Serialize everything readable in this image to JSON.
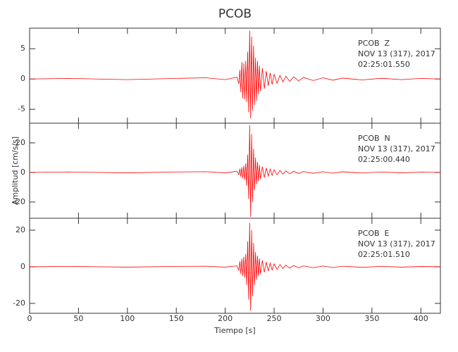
{
  "chart_data": [
    {
      "type": "line",
      "title": "PCOB",
      "color": "#ff0000",
      "annotation": [
        "PCOB  Z",
        "NOV 13 (317), 2017",
        "02:25:01.550"
      ],
      "xlim": [
        0,
        420
      ],
      "xticks": [
        0,
        50,
        100,
        150,
        200,
        250,
        300,
        350,
        400
      ],
      "ylim": [
        -7.3,
        8.4
      ],
      "yticks": [
        -5,
        0,
        5
      ],
      "x": [
        0,
        40,
        100,
        150,
        180,
        200,
        212,
        214,
        215,
        216,
        217,
        218,
        219,
        220,
        221,
        222,
        223,
        224,
        225,
        226,
        227,
        228,
        229,
        230,
        231,
        232,
        233,
        234,
        235,
        236,
        238,
        240,
        242,
        244,
        246,
        248,
        250,
        253,
        256,
        259,
        262,
        266,
        270,
        275,
        280,
        290,
        300,
        310,
        320,
        340,
        360,
        380,
        400,
        420
      ],
      "values": [
        0,
        0.1,
        -0.1,
        0.1,
        0.2,
        -0.1,
        0.3,
        -0.8,
        1.5,
        -2.2,
        2.8,
        -3.2,
        2.6,
        -3.4,
        3.0,
        -3.8,
        4.5,
        -5.5,
        8,
        -6.5,
        7,
        -5.2,
        5.5,
        -4.3,
        3.5,
        -3.6,
        3,
        -2.5,
        2.2,
        -2,
        1.8,
        -1.6,
        1.3,
        -1.1,
        1,
        -0.9,
        0.8,
        -0.7,
        0.6,
        -0.5,
        0.45,
        -0.4,
        0.35,
        -0.3,
        0.25,
        -0.25,
        0.2,
        -0.2,
        0.15,
        -0.15,
        0.12,
        -0.1,
        0.1,
        0
      ]
    },
    {
      "type": "line",
      "ylabel": "Amplitud [cm/s/s]",
      "color": "#ff0000",
      "annotation": [
        "PCOB  N",
        "NOV 13 (317), 2017",
        "02:25:00.440"
      ],
      "xlim": [
        0,
        420
      ],
      "xticks": [
        0,
        50,
        100,
        150,
        200,
        250,
        300,
        350,
        400
      ],
      "ylim": [
        -31,
        33.3
      ],
      "yticks": [
        -20,
        0,
        20
      ],
      "x": [
        0,
        40,
        100,
        150,
        180,
        200,
        212,
        214,
        215,
        216,
        217,
        218,
        219,
        220,
        221,
        222,
        223,
        224,
        225,
        226,
        227,
        228,
        229,
        230,
        231,
        232,
        233,
        234,
        235,
        236,
        238,
        240,
        242,
        244,
        246,
        248,
        250,
        253,
        256,
        259,
        262,
        266,
        270,
        275,
        280,
        290,
        300,
        310,
        320,
        340,
        360,
        380,
        400,
        420
      ],
      "values": [
        0,
        0.3,
        -0.3,
        0.3,
        0.5,
        -0.3,
        0.8,
        -1.5,
        2.5,
        -3,
        3.5,
        -4,
        4.5,
        -5,
        6,
        -9,
        12,
        -18,
        32,
        -30,
        26,
        -20,
        16,
        -12,
        10,
        -8,
        7,
        -6,
        5,
        -4.5,
        4,
        -3.5,
        3,
        -2.5,
        2.2,
        -2,
        1.8,
        -1.5,
        1.3,
        -1.1,
        1,
        -0.9,
        0.8,
        -0.7,
        0.6,
        -0.6,
        0.5,
        -0.5,
        0.4,
        -0.4,
        0.3,
        -0.3,
        0.2,
        0
      ]
    },
    {
      "type": "line",
      "xlabel": "Tiempo [s]",
      "color": "#ff0000",
      "annotation": [
        "PCOB  E",
        "NOV 13 (317), 2017",
        "02:25:01.510"
      ],
      "xlim": [
        0,
        420
      ],
      "xticks": [
        0,
        50,
        100,
        150,
        200,
        250,
        300,
        350,
        400
      ],
      "ylim": [
        -25.4,
        26.5
      ],
      "yticks": [
        -20,
        0,
        20
      ],
      "x": [
        0,
        40,
        100,
        150,
        180,
        200,
        212,
        214,
        215,
        216,
        217,
        218,
        219,
        220,
        221,
        222,
        223,
        224,
        225,
        226,
        227,
        228,
        229,
        230,
        231,
        232,
        233,
        234,
        235,
        236,
        238,
        240,
        242,
        244,
        246,
        248,
        250,
        253,
        256,
        259,
        262,
        266,
        270,
        275,
        280,
        290,
        300,
        310,
        320,
        340,
        360,
        380,
        400,
        420
      ],
      "values": [
        0,
        0.2,
        -0.2,
        0.2,
        0.3,
        -0.2,
        0.5,
        -2,
        3,
        -4,
        4.5,
        -5,
        5.5,
        -6,
        7,
        -10,
        14,
        -18,
        24,
        -24,
        20,
        -16,
        13,
        -10,
        8,
        -7,
        6,
        -5,
        4.5,
        -4,
        3.5,
        -3,
        2.6,
        -2.3,
        2,
        -1.8,
        1.6,
        -1.4,
        1.2,
        -1,
        0.9,
        -0.8,
        0.7,
        -0.6,
        0.5,
        -0.5,
        0.4,
        -0.4,
        0.3,
        -0.3,
        0.25,
        -0.2,
        0.15,
        0
      ]
    }
  ]
}
